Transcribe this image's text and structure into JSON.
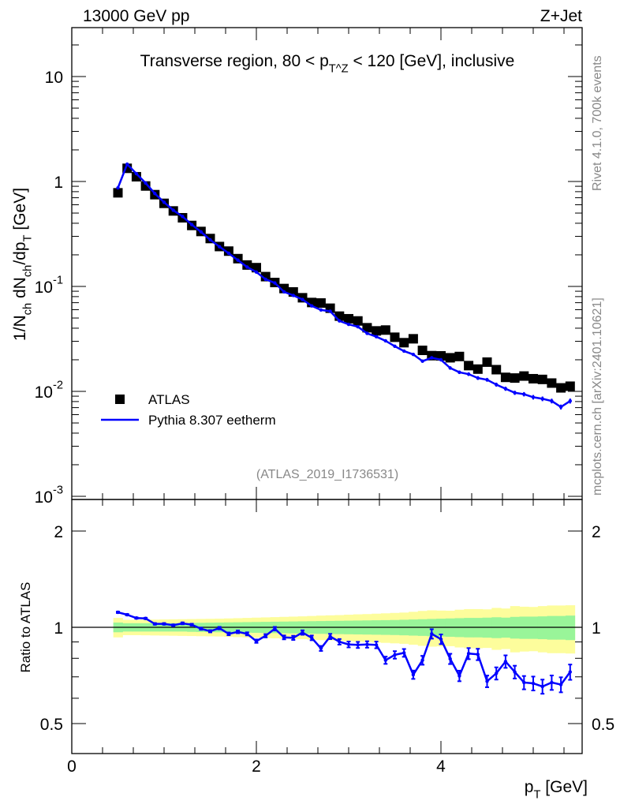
{
  "header": {
    "left": "13000 GeV pp",
    "right": "Z+Jet"
  },
  "side_text": {
    "rivet": "Rivet 4.1.0,  700k events",
    "mcplots": "mcplots.cern.ch [arXiv:2401.10621]"
  },
  "chart_data": [
    {
      "type": "scatter",
      "title": "Transverse region, 80 < p_T^Z < 120 [GeV], inclusive",
      "xlabel": "p_T [GeV]",
      "ylabel": "1/N_ch dN_ch/dp_T [GeV]",
      "yscale": "log",
      "xlim": [
        0,
        5.53
      ],
      "ylim": [
        0.001,
        29
      ],
      "x_ticks": [
        "0",
        "2",
        "4"
      ],
      "y_ticks": [
        {
          "v": 10,
          "label": "10"
        },
        {
          "v": 1,
          "label": "1"
        },
        {
          "v": 0.1,
          "label": "10^-1"
        },
        {
          "v": 0.01,
          "label": "10^-2"
        },
        {
          "v": 0.001,
          "label": "10^-3"
        }
      ],
      "legend_position": "bottom-left",
      "annotation": "(ATLAS_2019_I1736531)",
      "x": [
        0.5,
        0.6,
        0.7,
        0.8,
        0.9,
        1.0,
        1.1,
        1.2,
        1.3,
        1.4,
        1.5,
        1.6,
        1.7,
        1.8,
        1.9,
        2.0,
        2.1,
        2.2,
        2.3,
        2.4,
        2.5,
        2.6,
        2.7,
        2.8,
        2.9,
        3.0,
        3.1,
        3.2,
        3.3,
        3.4,
        3.5,
        3.6,
        3.7,
        3.8,
        3.9,
        4.0,
        4.1,
        4.2,
        4.3,
        4.4,
        4.5,
        4.6,
        4.7,
        4.8,
        4.9,
        5.0,
        5.1,
        5.2,
        5.3,
        5.4
      ],
      "series": [
        {
          "name": "ATLAS",
          "color": "#000000",
          "marker": "square",
          "values": [
            0.78,
            1.335,
            1.11,
            0.906,
            0.749,
            0.619,
            0.524,
            0.451,
            0.381,
            0.334,
            0.286,
            0.24,
            0.217,
            0.184,
            0.16,
            0.151,
            0.124,
            0.109,
            0.0955,
            0.0886,
            0.078,
            0.0703,
            0.0695,
            0.062,
            0.0521,
            0.0492,
            0.0469,
            0.0404,
            0.0377,
            0.0384,
            0.0328,
            0.0291,
            0.0317,
            0.0246,
            0.0219,
            0.0218,
            0.0209,
            0.0215,
            0.0176,
            0.0163,
            0.019,
            0.0161,
            0.0136,
            0.0134,
            0.014,
            0.0132,
            0.013,
            0.012,
            0.0108,
            0.0112
          ],
          "stat_rel_err": [
            0.035,
            0.03,
            0.03,
            0.03,
            0.03,
            0.03,
            0.03,
            0.03,
            0.032,
            0.033,
            0.034,
            0.035,
            0.036,
            0.037,
            0.038,
            0.039,
            0.04,
            0.041,
            0.042,
            0.043,
            0.044,
            0.045,
            0.046,
            0.047,
            0.048,
            0.049,
            0.05,
            0.051,
            0.052,
            0.053,
            0.054,
            0.056,
            0.058,
            0.06,
            0.062,
            0.064,
            0.066,
            0.068,
            0.07,
            0.07,
            0.072,
            0.075,
            0.072,
            0.078,
            0.08,
            0.08,
            0.082,
            0.085,
            0.085,
            0.088
          ],
          "total_rel_err": [
            0.07,
            0.055,
            0.055,
            0.056,
            0.057,
            0.058,
            0.059,
            0.06,
            0.061,
            0.062,
            0.063,
            0.064,
            0.066,
            0.068,
            0.07,
            0.072,
            0.074,
            0.076,
            0.078,
            0.08,
            0.082,
            0.085,
            0.088,
            0.09,
            0.092,
            0.095,
            0.098,
            0.1,
            0.103,
            0.106,
            0.109,
            0.112,
            0.118,
            0.125,
            0.13,
            0.128,
            0.127,
            0.135,
            0.14,
            0.14,
            0.138,
            0.15,
            0.145,
            0.165,
            0.16,
            0.158,
            0.165,
            0.17,
            0.17,
            0.172
          ]
        },
        {
          "name": "Pythia 8.307 eetherm",
          "color": "#0000ff",
          "marker": "line",
          "values": [
            0.869,
            1.462,
            1.187,
            0.966,
            0.768,
            0.634,
            0.532,
            0.464,
            0.388,
            0.331,
            0.278,
            0.239,
            0.207,
            0.178,
            0.153,
            0.137,
            0.117,
            0.108,
            0.0888,
            0.0821,
            0.0751,
            0.0652,
            0.0597,
            0.058,
            0.0469,
            0.0435,
            0.0413,
            0.0357,
            0.0332,
            0.0303,
            0.0269,
            0.0242,
            0.0225,
            0.0194,
            0.0209,
            0.02,
            0.0167,
            0.0152,
            0.0146,
            0.0134,
            0.0129,
            0.0116,
            0.0106,
            0.0097,
            0.0094,
            0.0088,
            0.0085,
            0.0081,
            0.0071,
            0.0081
          ],
          "rel_err": [
            0.005,
            0.005,
            0.005,
            0.005,
            0.006,
            0.006,
            0.006,
            0.007,
            0.007,
            0.008,
            0.008,
            0.009,
            0.01,
            0.01,
            0.011,
            0.012,
            0.012,
            0.013,
            0.014,
            0.015,
            0.016,
            0.017,
            0.018,
            0.019,
            0.02,
            0.021,
            0.022,
            0.023,
            0.024,
            0.026,
            0.027,
            0.028,
            0.03,
            0.032,
            0.034,
            0.035,
            0.037,
            0.038,
            0.04,
            0.041,
            0.042,
            0.044,
            0.045,
            0.046,
            0.048,
            0.05,
            0.051,
            0.052,
            0.054,
            0.055
          ]
        }
      ]
    },
    {
      "type": "line",
      "ylabel": "Ratio to ATLAS",
      "yscale": "log",
      "ylim": [
        0.4,
        2.5
      ],
      "y_ticks": [
        {
          "v": 2,
          "label": "2"
        },
        {
          "v": 1,
          "label": "1"
        },
        {
          "v": 0.5,
          "label": "0.5"
        }
      ],
      "band_colors": {
        "stat": "#99f599",
        "total": "#fdfd9c"
      },
      "series": [
        {
          "name": "Pythia 8.307 eetherm / ATLAS",
          "color": "#0000ff",
          "values": [
            1.114,
            1.095,
            1.069,
            1.066,
            1.025,
            1.025,
            1.015,
            1.029,
            1.019,
            0.99,
            0.972,
            0.994,
            0.954,
            0.968,
            0.954,
            0.905,
            0.941,
            0.99,
            0.93,
            0.927,
            0.963,
            0.927,
            0.859,
            0.936,
            0.901,
            0.884,
            0.881,
            0.884,
            0.881,
            0.789,
            0.82,
            0.832,
            0.711,
            0.789,
            0.954,
            0.918,
            0.797,
            0.705,
            0.828,
            0.823,
            0.678,
            0.718,
            0.782,
            0.725,
            0.672,
            0.668,
            0.653,
            0.672,
            0.662,
            0.725
          ]
        }
      ]
    }
  ]
}
